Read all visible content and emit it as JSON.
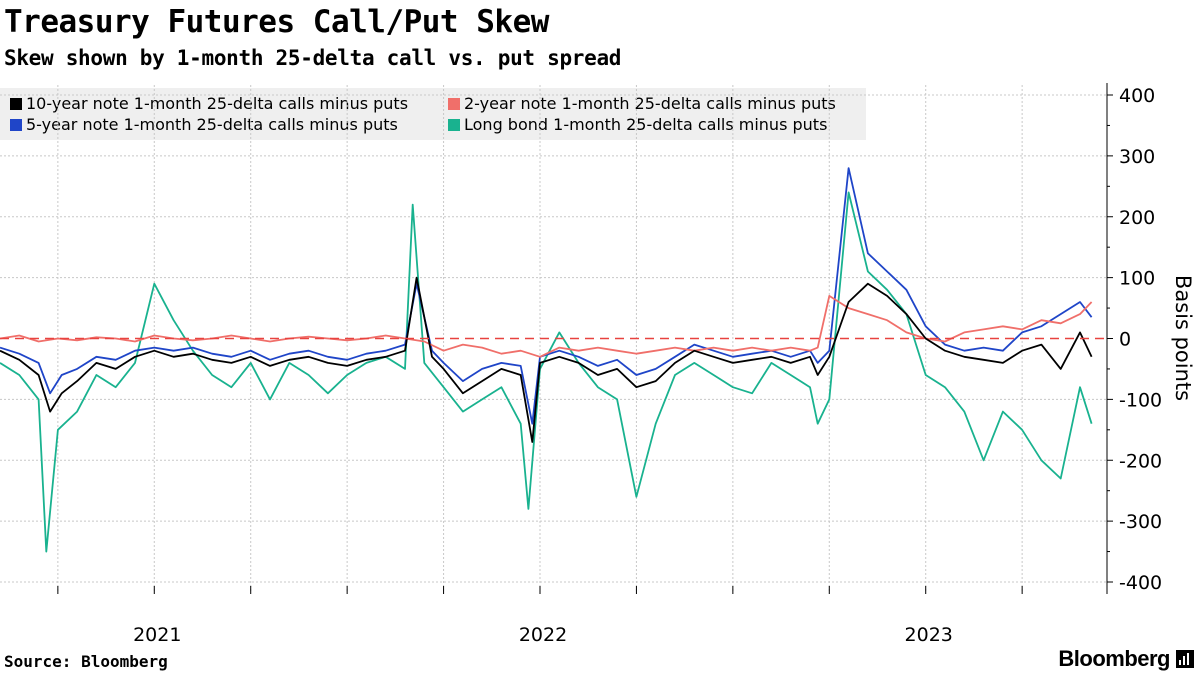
{
  "header": {
    "title": "Treasury Futures Call/Put Skew",
    "subtitle": "Skew shown by 1-month 25-delta call vs. put spread"
  },
  "footer": {
    "source": "Source: Bloomberg",
    "brand": "Bloomberg"
  },
  "chart_data": {
    "type": "line",
    "title": "Treasury Futures Call/Put Skew",
    "subtitle": "Skew shown by 1-month 25-delta call vs. put spread",
    "ylabel": "Basis points",
    "xlabel": "",
    "ylim": [
      -400,
      400
    ],
    "yticks": [
      400,
      300,
      200,
      100,
      0,
      -100,
      -200,
      -300,
      -400
    ],
    "ytick_labels": [
      "400",
      "300",
      "200",
      "100",
      "0",
      "-100",
      "-200",
      "-300",
      "-400"
    ],
    "x_range": [
      2020.6,
      2023.47
    ],
    "year_labels": [
      {
        "label": "2021",
        "x": 2021.0
      },
      {
        "label": "2022",
        "x": 2022.0
      },
      {
        "label": "2023",
        "x": 2023.0
      }
    ],
    "quarter_gridlines": [
      2020.75,
      2021.0,
      2021.25,
      2021.5,
      2021.75,
      2022.0,
      2022.25,
      2022.5,
      2022.75,
      2023.0,
      2023.25
    ],
    "reference_line": {
      "y": 0,
      "color": "#e8423f",
      "style": "dashed"
    },
    "grid": true,
    "legend_position": "top-left",
    "series": [
      {
        "name": "10-year note 1-month 25-delta calls minus puts",
        "color": "#000000",
        "x": [
          2020.6,
          2020.65,
          2020.7,
          2020.73,
          2020.76,
          2020.8,
          2020.85,
          2020.9,
          2020.95,
          2021.0,
          2021.05,
          2021.1,
          2021.15,
          2021.2,
          2021.25,
          2021.3,
          2021.35,
          2021.4,
          2021.45,
          2021.5,
          2021.55,
          2021.6,
          2021.65,
          2021.68,
          2021.72,
          2021.75,
          2021.8,
          2021.85,
          2021.9,
          2021.95,
          2021.98,
          2022.0,
          2022.05,
          2022.1,
          2022.15,
          2022.2,
          2022.25,
          2022.3,
          2022.35,
          2022.4,
          2022.45,
          2022.5,
          2022.55,
          2022.6,
          2022.65,
          2022.7,
          2022.72,
          2022.75,
          2022.8,
          2022.85,
          2022.9,
          2022.95,
          2023.0,
          2023.05,
          2023.1,
          2023.15,
          2023.2,
          2023.25,
          2023.3,
          2023.35,
          2023.4,
          2023.43
        ],
        "y": [
          -20,
          -35,
          -60,
          -120,
          -90,
          -70,
          -40,
          -50,
          -30,
          -20,
          -30,
          -25,
          -35,
          -40,
          -30,
          -45,
          -35,
          -30,
          -40,
          -45,
          -35,
          -30,
          -20,
          100,
          -30,
          -50,
          -90,
          -70,
          -50,
          -60,
          -170,
          -40,
          -30,
          -40,
          -60,
          -50,
          -80,
          -70,
          -40,
          -20,
          -30,
          -40,
          -35,
          -30,
          -40,
          -30,
          -60,
          -30,
          60,
          90,
          70,
          40,
          0,
          -20,
          -30,
          -35,
          -40,
          -20,
          -10,
          -50,
          10,
          -30
        ]
      },
      {
        "name": "2-year note 1-month 25-delta calls minus puts",
        "color": "#f06f6a",
        "x": [
          2020.6,
          2020.65,
          2020.7,
          2020.75,
          2020.8,
          2020.85,
          2020.9,
          2020.95,
          2021.0,
          2021.05,
          2021.1,
          2021.15,
          2021.2,
          2021.25,
          2021.3,
          2021.35,
          2021.4,
          2021.45,
          2021.5,
          2021.55,
          2021.6,
          2021.65,
          2021.7,
          2021.75,
          2021.8,
          2021.85,
          2021.9,
          2021.95,
          2022.0,
          2022.05,
          2022.1,
          2022.15,
          2022.2,
          2022.25,
          2022.3,
          2022.35,
          2022.4,
          2022.45,
          2022.5,
          2022.55,
          2022.6,
          2022.65,
          2022.7,
          2022.72,
          2022.75,
          2022.8,
          2022.85,
          2022.9,
          2022.95,
          2023.0,
          2023.05,
          2023.1,
          2023.15,
          2023.2,
          2023.25,
          2023.3,
          2023.35,
          2023.4,
          2023.43
        ],
        "y": [
          0,
          5,
          -5,
          0,
          -3,
          2,
          0,
          -5,
          5,
          0,
          -3,
          0,
          5,
          0,
          -5,
          0,
          3,
          0,
          -3,
          0,
          5,
          0,
          -5,
          -20,
          -10,
          -15,
          -25,
          -20,
          -30,
          -15,
          -20,
          -15,
          -20,
          -25,
          -20,
          -15,
          -20,
          -15,
          -20,
          -15,
          -20,
          -15,
          -20,
          -15,
          70,
          50,
          40,
          30,
          10,
          0,
          -5,
          10,
          15,
          20,
          15,
          30,
          25,
          40,
          60
        ]
      },
      {
        "name": "5-year note 1-month 25-delta calls minus puts",
        "color": "#1f45c8",
        "x": [
          2020.6,
          2020.65,
          2020.7,
          2020.73,
          2020.76,
          2020.8,
          2020.85,
          2020.9,
          2020.95,
          2021.0,
          2021.05,
          2021.1,
          2021.15,
          2021.2,
          2021.25,
          2021.3,
          2021.35,
          2021.4,
          2021.45,
          2021.5,
          2021.55,
          2021.6,
          2021.65,
          2021.68,
          2021.72,
          2021.75,
          2021.8,
          2021.85,
          2021.9,
          2021.95,
          2021.98,
          2022.0,
          2022.05,
          2022.1,
          2022.15,
          2022.2,
          2022.25,
          2022.3,
          2022.35,
          2022.4,
          2022.45,
          2022.5,
          2022.55,
          2022.6,
          2022.65,
          2022.7,
          2022.72,
          2022.75,
          2022.8,
          2022.85,
          2022.9,
          2022.95,
          2023.0,
          2023.05,
          2023.1,
          2023.15,
          2023.2,
          2023.25,
          2023.3,
          2023.35,
          2023.4,
          2023.43
        ],
        "y": [
          -15,
          -25,
          -40,
          -90,
          -60,
          -50,
          -30,
          -35,
          -20,
          -15,
          -20,
          -15,
          -25,
          -30,
          -20,
          -35,
          -25,
          -20,
          -30,
          -35,
          -25,
          -20,
          -10,
          90,
          -20,
          -40,
          -70,
          -50,
          -40,
          -45,
          -140,
          -30,
          -20,
          -30,
          -45,
          -35,
          -60,
          -50,
          -30,
          -10,
          -20,
          -30,
          -25,
          -20,
          -30,
          -20,
          -40,
          -20,
          280,
          140,
          110,
          80,
          20,
          -10,
          -20,
          -15,
          -20,
          10,
          20,
          40,
          60,
          35
        ]
      },
      {
        "name": "Long bond 1-month 25-delta calls minus puts",
        "color": "#19b28f",
        "x": [
          2020.6,
          2020.65,
          2020.7,
          2020.72,
          2020.75,
          2020.8,
          2020.85,
          2020.9,
          2020.95,
          2021.0,
          2021.05,
          2021.1,
          2021.15,
          2021.2,
          2021.25,
          2021.3,
          2021.35,
          2021.4,
          2021.45,
          2021.5,
          2021.55,
          2021.6,
          2021.65,
          2021.67,
          2021.7,
          2021.75,
          2021.8,
          2021.85,
          2021.9,
          2021.95,
          2021.97,
          2022.0,
          2022.05,
          2022.1,
          2022.15,
          2022.2,
          2022.25,
          2022.3,
          2022.35,
          2022.4,
          2022.45,
          2022.5,
          2022.55,
          2022.6,
          2022.65,
          2022.7,
          2022.72,
          2022.75,
          2022.8,
          2022.85,
          2022.9,
          2022.95,
          2023.0,
          2023.05,
          2023.1,
          2023.15,
          2023.2,
          2023.25,
          2023.3,
          2023.35,
          2023.4,
          2023.43
        ],
        "y": [
          -40,
          -60,
          -100,
          -350,
          -150,
          -120,
          -60,
          -80,
          -40,
          90,
          30,
          -20,
          -60,
          -80,
          -40,
          -100,
          -40,
          -60,
          -90,
          -60,
          -40,
          -30,
          -50,
          220,
          -40,
          -80,
          -120,
          -100,
          -80,
          -140,
          -280,
          -50,
          10,
          -40,
          -80,
          -100,
          -260,
          -140,
          -60,
          -40,
          -60,
          -80,
          -90,
          -40,
          -60,
          -80,
          -140,
          -100,
          240,
          110,
          80,
          40,
          -60,
          -80,
          -120,
          -200,
          -120,
          -150,
          -200,
          -230,
          -80,
          -140
        ]
      }
    ]
  }
}
